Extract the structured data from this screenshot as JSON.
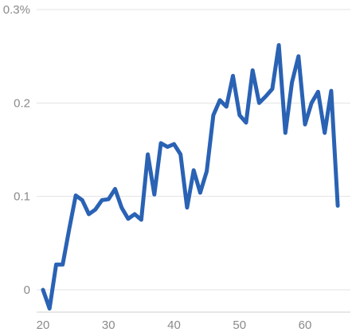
{
  "chart_data": {
    "type": "line",
    "title": "",
    "xlabel": "",
    "ylabel": "",
    "xlim": [
      19,
      66
    ],
    "ylim": [
      -0.025,
      0.3
    ],
    "grid": true,
    "legend": "none",
    "x_ticks": [
      {
        "value": 20,
        "label": "20"
      },
      {
        "value": 30,
        "label": "30"
      },
      {
        "value": 40,
        "label": "40"
      },
      {
        "value": 50,
        "label": "50"
      },
      {
        "value": 60,
        "label": "60"
      }
    ],
    "y_ticks": [
      {
        "value": 0,
        "label": "0"
      },
      {
        "value": 0.1,
        "label": "0.1"
      },
      {
        "value": 0.2,
        "label": "0.2"
      },
      {
        "value": 0.3,
        "label": "0.3%"
      }
    ],
    "series": [
      {
        "color": "#2a62b4",
        "x": [
          20,
          21,
          22,
          23,
          24,
          25,
          26,
          27,
          28,
          29,
          30,
          31,
          32,
          33,
          34,
          35,
          36,
          37,
          38,
          39,
          40,
          41,
          42,
          43,
          44,
          45,
          46,
          47,
          48,
          49,
          50,
          51,
          52,
          53,
          54,
          55,
          56,
          57,
          58,
          59,
          60,
          61,
          62,
          63,
          64,
          65
        ],
        "y": [
          0.0,
          -0.02,
          0.027,
          0.027,
          0.065,
          0.101,
          0.096,
          0.081,
          0.086,
          0.096,
          0.097,
          0.108,
          0.088,
          0.076,
          0.081,
          0.075,
          0.145,
          0.102,
          0.157,
          0.153,
          0.156,
          0.145,
          0.088,
          0.128,
          0.104,
          0.127,
          0.187,
          0.203,
          0.196,
          0.229,
          0.187,
          0.179,
          0.235,
          0.2,
          0.207,
          0.215,
          0.262,
          0.168,
          0.222,
          0.25,
          0.177,
          0.2,
          0.212,
          0.168,
          0.213,
          0.09
        ]
      }
    ]
  }
}
